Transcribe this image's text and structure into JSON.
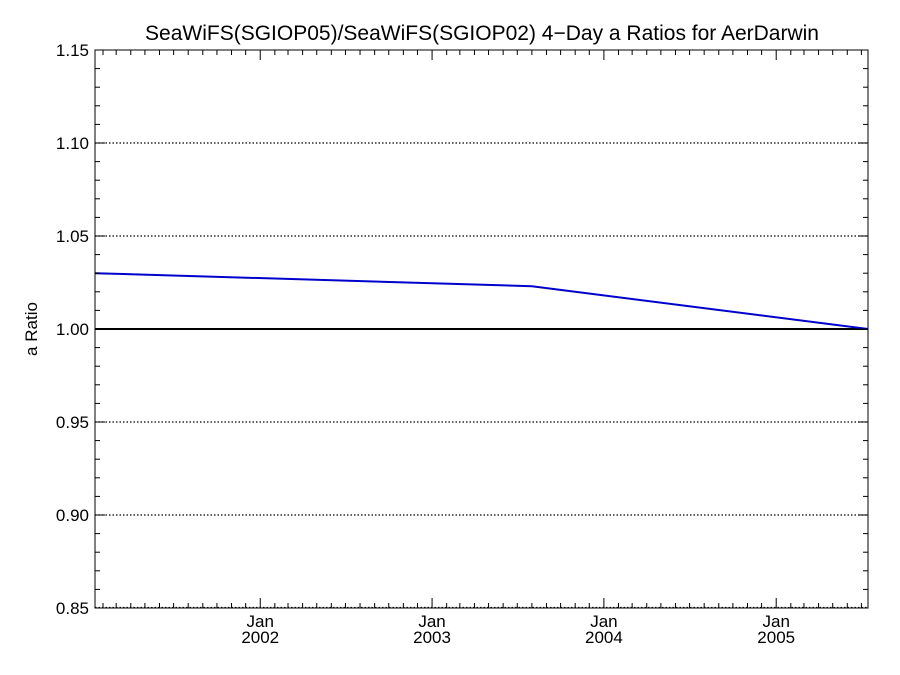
{
  "chart_data": {
    "type": "line",
    "title": "SeaWiFS(SGIOP05)/SeaWiFS(SGIOP02) 4−Day a Ratios for AerDarwin",
    "xlabel": "",
    "ylabel": "a Ratio",
    "ylim": [
      0.85,
      1.15
    ],
    "xlim": [
      "2001-01-15",
      "2005-07-15"
    ],
    "x_ticks": [
      {
        "date": "2002-01-01",
        "month": "Jan",
        "year": "2002"
      },
      {
        "date": "2003-01-01",
        "month": "Jan",
        "year": "2003"
      },
      {
        "date": "2004-01-01",
        "month": "Jan",
        "year": "2004"
      },
      {
        "date": "2005-01-01",
        "month": "Jan",
        "year": "2005"
      }
    ],
    "y_ticks": [
      "0.85",
      "0.90",
      "0.95",
      "1.00",
      "1.05",
      "1.10",
      "1.15"
    ],
    "grid_y": [
      0.9,
      0.95,
      1.05,
      1.1
    ],
    "reference_line": 1.0,
    "series": [
      {
        "color": "#0000cc",
        "points": [
          {
            "x": "2001-01-15",
            "y": 1.03
          },
          {
            "x": "2003-08-01",
            "y": 1.023
          },
          {
            "x": "2005-07-15",
            "y": 1.0
          }
        ]
      }
    ]
  }
}
